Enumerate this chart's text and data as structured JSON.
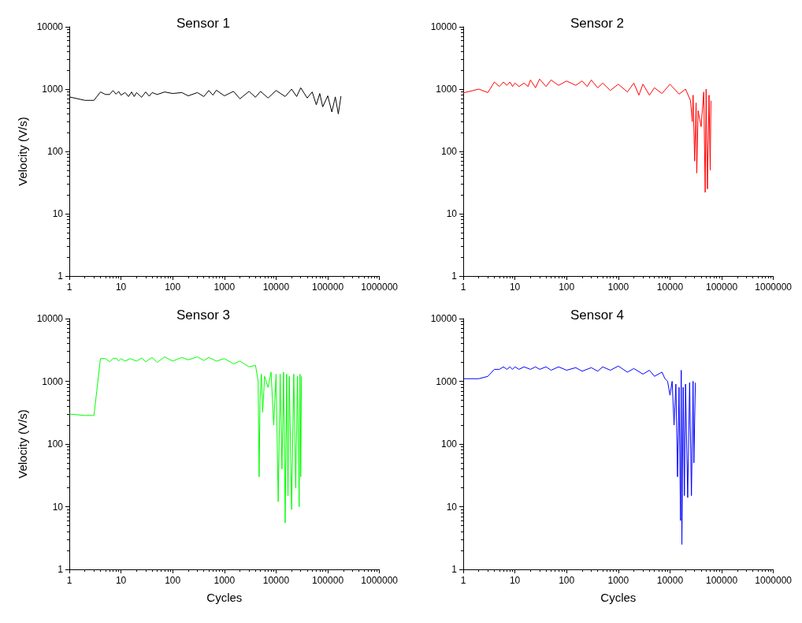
{
  "chart_data": [
    {
      "type": "line",
      "title": "Sensor 1",
      "ylabel": "Velocity (V/s)",
      "log": "xy",
      "grid": false,
      "marker": "none",
      "line_style": "solid",
      "xlim": [
        1,
        1000000
      ],
      "xticks": [
        1,
        10,
        100,
        1000,
        10000,
        100000,
        1000000
      ],
      "ylim": [
        1,
        10000
      ],
      "yticks": [
        1,
        10,
        100,
        1000,
        10000
      ],
      "series": [
        {
          "color": "#000000",
          "x": [
            1,
            2,
            3,
            4,
            5,
            6,
            7,
            8,
            9,
            10,
            12,
            14,
            16,
            18,
            20,
            25,
            30,
            35,
            40,
            50,
            70,
            100,
            150,
            200,
            300,
            400,
            500,
            600,
            700,
            1000,
            1500,
            2000,
            3000,
            4000,
            5000,
            7000,
            10000,
            15000,
            20000,
            25000,
            30000,
            40000,
            50000,
            60000,
            70000,
            80000,
            100000,
            120000,
            140000,
            160000,
            180000
          ],
          "values": [
            750,
            660,
            660,
            900,
            820,
            820,
            950,
            830,
            920,
            800,
            880,
            760,
            900,
            760,
            880,
            740,
            900,
            770,
            880,
            820,
            900,
            850,
            880,
            780,
            880,
            760,
            950,
            800,
            960,
            780,
            920,
            700,
            920,
            740,
            920,
            720,
            950,
            760,
            1000,
            760,
            1050,
            720,
            900,
            560,
            850,
            520,
            780,
            430,
            750,
            400,
            770
          ]
        }
      ]
    },
    {
      "type": "line",
      "title": "Sensor 2",
      "log": "xy",
      "grid": false,
      "marker": "none",
      "line_style": "solid",
      "xlim": [
        1,
        1000000
      ],
      "xticks": [
        1,
        10,
        100,
        1000,
        10000,
        100000,
        1000000
      ],
      "ylim": [
        1,
        10000
      ],
      "yticks": [
        1,
        10,
        100,
        1000,
        10000
      ],
      "series": [
        {
          "color": "#ff0000",
          "x": [
            1,
            2,
            3,
            4,
            5,
            6,
            7,
            8,
            9,
            10,
            12,
            15,
            18,
            20,
            25,
            30,
            40,
            50,
            70,
            100,
            150,
            200,
            250,
            300,
            400,
            500,
            700,
            1000,
            1500,
            2000,
            2500,
            3000,
            4000,
            5000,
            7000,
            10000,
            15000,
            20000,
            25000,
            27000,
            28000,
            30000,
            32000,
            33000,
            35000,
            40000,
            45000,
            48000,
            50000,
            53000,
            57000,
            60000,
            62000
          ],
          "values": [
            870,
            1000,
            880,
            1300,
            1100,
            1300,
            1150,
            1300,
            1100,
            1250,
            1100,
            1250,
            1100,
            1400,
            1050,
            1450,
            1100,
            1400,
            1150,
            1350,
            1150,
            1350,
            1100,
            1400,
            1050,
            1250,
            950,
            1200,
            900,
            1250,
            800,
            1200,
            800,
            1050,
            850,
            1200,
            830,
            1000,
            650,
            300,
            800,
            70,
            600,
            45,
            450,
            250,
            900,
            22,
            1000,
            25,
            800,
            50,
            650
          ]
        }
      ]
    },
    {
      "type": "line",
      "title": "Sensor 3",
      "xlabel": "Cycles",
      "ylabel": "Velocity (V/s)",
      "log": "xy",
      "grid": false,
      "marker": "none",
      "line_style": "solid",
      "xlim": [
        1,
        1000000
      ],
      "xticks": [
        1,
        10,
        100,
        1000,
        10000,
        100000,
        1000000
      ],
      "ylim": [
        1,
        10000
      ],
      "yticks": [
        1,
        10,
        100,
        1000,
        10000
      ],
      "series": [
        {
          "color": "#00ff00",
          "x": [
            1,
            2,
            3,
            4,
            5,
            6,
            7,
            8,
            9,
            10,
            12,
            15,
            20,
            25,
            30,
            40,
            50,
            70,
            100,
            150,
            200,
            300,
            400,
            500,
            700,
            1000,
            1500,
            2000,
            3000,
            4000,
            4500,
            4700,
            4900,
            5200,
            5500,
            6000,
            7000,
            8000,
            9000,
            10000,
            11000,
            12000,
            13000,
            14000,
            15000,
            16000,
            17000,
            18000,
            20000,
            22000,
            24000,
            26000,
            28000,
            29000,
            30000,
            31000
          ],
          "values": [
            300,
            285,
            285,
            2300,
            2300,
            2050,
            2300,
            2350,
            2100,
            2300,
            2100,
            2300,
            2100,
            2350,
            2050,
            2400,
            2000,
            2450,
            2100,
            2400,
            2200,
            2450,
            2150,
            2400,
            2100,
            2300,
            1900,
            2100,
            1700,
            1800,
            1000,
            30,
            500,
            1300,
            320,
            1200,
            800,
            1400,
            200,
            1300,
            12,
            1300,
            40,
            1400,
            5.5,
            1300,
            15,
            1200,
            9,
            1300,
            20,
            1200,
            10,
            1300,
            30,
            1200
          ]
        }
      ]
    },
    {
      "type": "line",
      "title": "Sensor 4",
      "xlabel": "Cycles",
      "log": "xy",
      "grid": false,
      "marker": "none",
      "line_style": "solid",
      "xlim": [
        1,
        1000000
      ],
      "xticks": [
        1,
        10,
        100,
        1000,
        10000,
        100000,
        1000000
      ],
      "ylim": [
        1,
        10000
      ],
      "yticks": [
        1,
        10,
        100,
        1000,
        10000
      ],
      "series": [
        {
          "color": "#0000ff",
          "x": [
            1,
            2,
            3,
            4,
            5,
            6,
            7,
            8,
            9,
            10,
            12,
            15,
            20,
            25,
            30,
            40,
            50,
            70,
            100,
            150,
            200,
            300,
            400,
            500,
            700,
            1000,
            1500,
            2000,
            3000,
            4000,
            5000,
            7000,
            8000,
            9000,
            10000,
            11000,
            12000,
            13000,
            14000,
            15000,
            16000,
            16500,
            17000,
            18000,
            19000,
            20000,
            22000,
            24000,
            26000,
            28000,
            29000,
            31000
          ],
          "values": [
            1100,
            1100,
            1200,
            1550,
            1550,
            1700,
            1550,
            1700,
            1550,
            1700,
            1550,
            1700,
            1550,
            1700,
            1550,
            1700,
            1500,
            1700,
            1500,
            1650,
            1450,
            1650,
            1450,
            1700,
            1500,
            1750,
            1400,
            1600,
            1300,
            1500,
            1200,
            1400,
            1100,
            1000,
            600,
            1000,
            200,
            900,
            30,
            800,
            6,
            1500,
            2.5,
            800,
            15,
            900,
            14,
            950,
            15,
            1000,
            50,
            950
          ]
        }
      ]
    }
  ]
}
